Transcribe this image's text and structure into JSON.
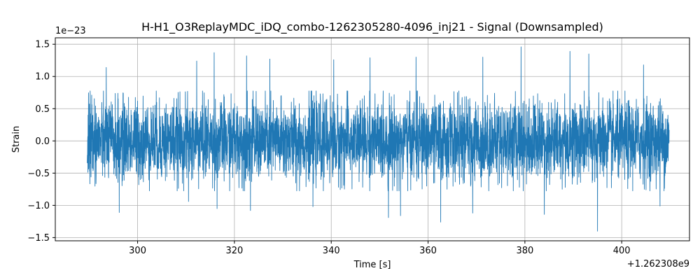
{
  "chart_data": {
    "type": "line",
    "title": "H-H1_O3ReplayMDC_iDQ_combo-1262305280-4096_inj21 - Signal (Downsampled)",
    "xlabel": "Time [s]",
    "ylabel": "Strain",
    "x_offset_label": "+1.262308e9",
    "y_scale_label": "1e−23",
    "xlim": [
      283,
      414
    ],
    "ylim": [
      -1.55,
      1.6
    ],
    "xticks": [
      300,
      320,
      340,
      360,
      380,
      400
    ],
    "xtick_labels": [
      "300",
      "320",
      "340",
      "360",
      "380",
      "400"
    ],
    "yticks": [
      -1.5,
      -1.0,
      -0.5,
      0.0,
      0.5,
      1.0,
      1.5
    ],
    "ytick_labels": [
      "−1.5",
      "−1.0",
      "−0.5",
      "0.0",
      "0.5",
      "1.0",
      "1.5"
    ],
    "grid": true,
    "series": [
      {
        "color": "#1f77b4",
        "x_start": 289.6,
        "x_end": 409.8,
        "typical_amplitude": 0.5,
        "peaks": [
          {
            "x": 293.5,
            "y": 1.14
          },
          {
            "x": 312.2,
            "y": 1.24
          },
          {
            "x": 315.8,
            "y": 1.37
          },
          {
            "x": 322.5,
            "y": 1.32
          },
          {
            "x": 327.3,
            "y": 1.27
          },
          {
            "x": 340.5,
            "y": 1.26
          },
          {
            "x": 348.0,
            "y": 1.29
          },
          {
            "x": 357.5,
            "y": 1.3
          },
          {
            "x": 371.3,
            "y": 1.3
          },
          {
            "x": 379.2,
            "y": 1.46
          },
          {
            "x": 389.3,
            "y": 1.39
          },
          {
            "x": 393.2,
            "y": 1.35
          },
          {
            "x": 404.5,
            "y": 1.18
          }
        ],
        "troughs": [
          {
            "x": 296.2,
            "y": -1.11
          },
          {
            "x": 310.5,
            "y": -0.94
          },
          {
            "x": 316.4,
            "y": -1.05
          },
          {
            "x": 323.3,
            "y": -1.08
          },
          {
            "x": 336.2,
            "y": -1.02
          },
          {
            "x": 351.8,
            "y": -1.19
          },
          {
            "x": 354.3,
            "y": -1.16
          },
          {
            "x": 362.6,
            "y": -1.26
          },
          {
            "x": 369.2,
            "y": -1.12
          },
          {
            "x": 384.0,
            "y": -1.14
          },
          {
            "x": 395.0,
            "y": -1.4
          },
          {
            "x": 407.9,
            "y": -1.01
          }
        ]
      }
    ]
  }
}
